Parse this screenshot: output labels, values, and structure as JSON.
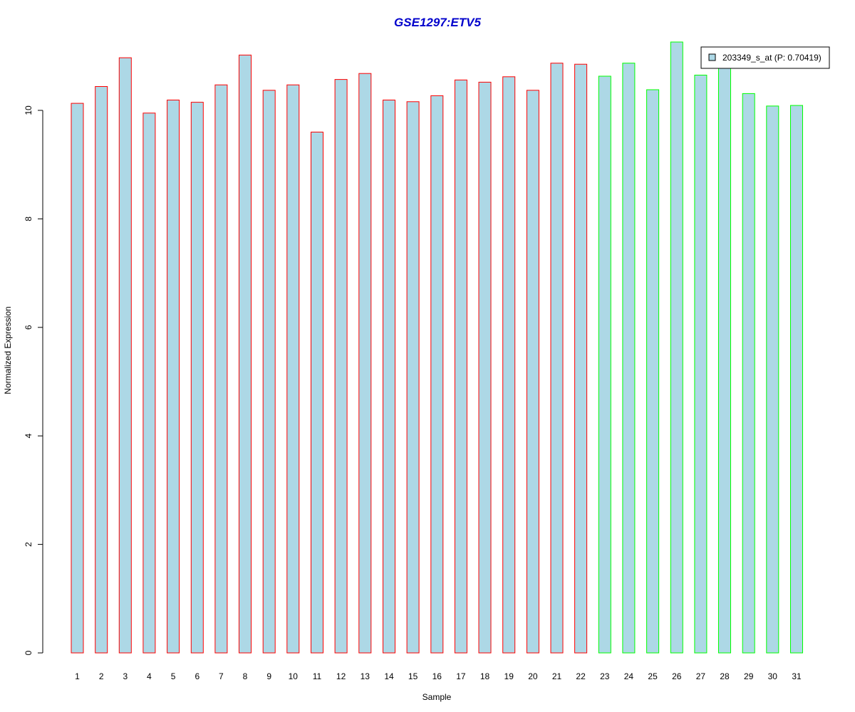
{
  "chart_data": {
    "type": "bar",
    "title": "GSE1297:ETV5",
    "xlabel": "Sample",
    "ylabel": "Normalized Expression",
    "ylim": [
      0,
      11.4
    ],
    "yticks": [
      0,
      2,
      4,
      6,
      8,
      10
    ],
    "ytick_labels": [
      "0",
      "2",
      "4",
      "6",
      "8",
      "10"
    ],
    "grid": false,
    "legend_position": "top-right",
    "categories": [
      "1",
      "2",
      "3",
      "4",
      "5",
      "6",
      "7",
      "8",
      "9",
      "10",
      "11",
      "12",
      "13",
      "14",
      "15",
      "16",
      "17",
      "18",
      "19",
      "20",
      "21",
      "22",
      "23",
      "24",
      "25",
      "26",
      "27",
      "28",
      "29",
      "30",
      "31"
    ],
    "series": [
      {
        "name": "203349_s_at (P: 0.70419)",
        "fill_color": "#add8e6",
        "values": [
          10.13,
          10.44,
          10.97,
          9.95,
          10.19,
          10.15,
          10.47,
          11.02,
          10.37,
          10.47,
          9.6,
          10.57,
          10.68,
          10.19,
          10.16,
          10.27,
          10.56,
          10.52,
          10.62,
          10.37,
          10.87,
          10.85,
          10.63,
          10.87,
          10.38,
          11.26,
          10.65,
          10.88,
          10.31,
          10.08,
          10.09
        ]
      }
    ],
    "border_colors": [
      "#ff0000",
      "#ff0000",
      "#ff0000",
      "#ff0000",
      "#ff0000",
      "#ff0000",
      "#ff0000",
      "#ff0000",
      "#ff0000",
      "#ff0000",
      "#ff0000",
      "#ff0000",
      "#ff0000",
      "#ff0000",
      "#ff0000",
      "#ff0000",
      "#ff0000",
      "#ff0000",
      "#ff0000",
      "#ff0000",
      "#ff0000",
      "#ff0000",
      "#00ff00",
      "#00ff00",
      "#00ff00",
      "#00ff00",
      "#00ff00",
      "#00ff00",
      "#00ff00",
      "#00ff00",
      "#00ff00"
    ],
    "title_color": "#0000cc"
  }
}
